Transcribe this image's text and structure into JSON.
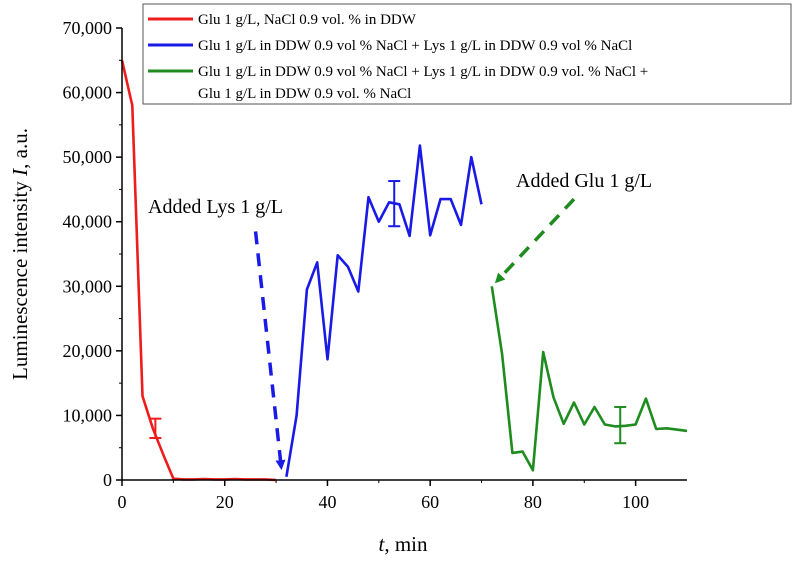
{
  "chart_data": {
    "type": "line",
    "xlabel_var": "t",
    "xlabel_unit": ", min",
    "ylabel_prefix": "Luminescence intensity ",
    "ylabel_var": "I",
    "ylabel_unit": ", a.u.",
    "xlim": [
      0,
      110
    ],
    "ylim": [
      0,
      70000
    ],
    "x_ticks": [
      0,
      20,
      40,
      60,
      80,
      100
    ],
    "x_tick_labels": [
      "0",
      "20",
      "40",
      "60",
      "80",
      "100"
    ],
    "y_ticks": [
      0,
      10000,
      20000,
      30000,
      40000,
      50000,
      60000,
      70000
    ],
    "y_tick_labels": [
      "0",
      "10,000",
      "20,000",
      "30,000",
      "40,000",
      "50,000",
      "60,000",
      "70,000"
    ],
    "grid": false,
    "legend_position": "top-right",
    "series": [
      {
        "name": "Glu 1 g/L, NaCl 0.9 vol. % in DDW",
        "color": "#ee1c1c",
        "x": [
          0,
          2,
          4,
          6,
          8,
          10,
          12,
          14,
          16,
          18,
          20,
          22,
          24,
          26,
          28,
          30
        ],
        "y": [
          65000,
          58000,
          13000,
          8000,
          4000,
          200,
          100,
          100,
          150,
          100,
          100,
          150,
          100,
          100,
          100,
          0
        ],
        "error_bars": [
          {
            "x": 6.5,
            "y": 8000,
            "err": 1500
          }
        ]
      },
      {
        "name_lines": [
          "Glu 1 g/L in DDW 0.9 vol % NaCl + Lys 1 g/L in DDW 0.9 vol % NaCl"
        ],
        "name": "Glu 1 g/L in DDW 0.9 vol % NaCl + Lys 1 g/L in DDW 0.9 vol % NaCl",
        "color": "#1a1ae6",
        "x": [
          32,
          34,
          36,
          38,
          40,
          42,
          44,
          46,
          48,
          50,
          52,
          54,
          56,
          58,
          60,
          62,
          64,
          66,
          68,
          70
        ],
        "y": [
          500,
          10000,
          29500,
          33700,
          18700,
          34800,
          33000,
          29200,
          43800,
          40000,
          43000,
          42700,
          37800,
          51800,
          37900,
          43500,
          43500,
          39500,
          50000,
          42700
        ],
        "error_bars": [
          {
            "x": 53,
            "y": 42800,
            "err": 3500
          }
        ]
      },
      {
        "name_lines": [
          "Glu 1 g/L in DDW 0.9 vol % NaCl + Lys 1 g/L in DDW 0.9 vol. % NaCl +",
          "Glu 1 g/L in DDW 0.9 vol. % NaCl"
        ],
        "name": "Glu 1 g/L in DDW 0.9 vol % NaCl + Lys 1 g/L in DDW 0.9 vol. % NaCl + Glu 1 g/L in DDW 0.9 vol. % NaCl",
        "color": "#1e8c1e",
        "x": [
          72,
          74,
          76,
          78,
          80,
          82,
          84,
          86,
          88,
          90,
          92,
          94,
          96,
          98,
          100,
          102,
          104,
          106,
          108,
          110
        ],
        "y": [
          30000,
          19500,
          4200,
          4400,
          1500,
          19800,
          12800,
          8700,
          12000,
          8600,
          11300,
          8600,
          8300,
          8400,
          8600,
          12600,
          7900,
          8000,
          7800,
          7600
        ],
        "error_bars": [
          {
            "x": 97,
            "y": 8500,
            "err": 2800
          }
        ]
      }
    ],
    "annotations": [
      {
        "text": "Added Lys 1 g/L",
        "color": "#1a1ae6",
        "arrow_from": [
          26,
          38500
        ],
        "arrow_to": [
          31,
          2000
        ]
      },
      {
        "text": "Added Glu 1 g/L",
        "color": "#1e8c1e",
        "arrow_from": [
          88,
          43500
        ],
        "arrow_to": [
          73,
          30800
        ]
      }
    ]
  }
}
